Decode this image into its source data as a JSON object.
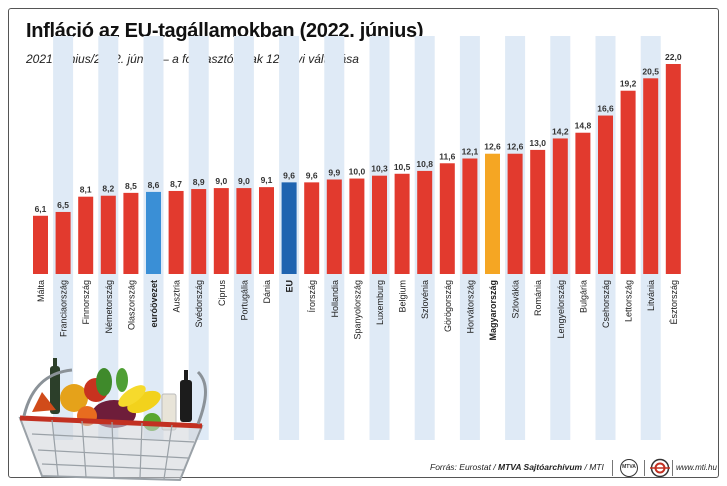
{
  "title": "Infláció az EU-tagállamokban (2022. június)",
  "subtitle": "2021. június/2022. június – a fogyasztói árak 12 havi változása",
  "footer": {
    "source_prefix": "Forrás: Eurostat / ",
    "source_bold": "MTVA Sajtóarchívum",
    "source_suffix": " / MTI",
    "logo1": "MTVA",
    "website": "www.mti.hu"
  },
  "colors": {
    "bar_default": "#e23a2e",
    "bar_eurozone": "#3a8fd6",
    "bar_eu": "#1e63b0",
    "bar_hungary": "#f5a623",
    "column_bg": "#dfeaf6"
  },
  "illustration": "shopping-basket-with-groceries",
  "chart_data": {
    "type": "bar",
    "title": "Infláció az EU-tagállamokban (2022. június)",
    "subtitle": "2021. június/2022. június – a fogyasztói árak 12 havi változása",
    "categories": [
      "Málta",
      "Franciaország",
      "Finnország",
      "Németország",
      "Olaszország",
      "euróövezet",
      "Ausztria",
      "Svédország",
      "Ciprus",
      "Portugália",
      "Dánia",
      "EU",
      "Írország",
      "Hollandia",
      "Spanyolország",
      "Luxemburg",
      "Belgium",
      "Szlovénia",
      "Görögország",
      "Horvátország",
      "Magyarország",
      "Szlovákia",
      "Románia",
      "Lengyelország",
      "Bulgária",
      "Csehország",
      "Lettország",
      "Litvánia",
      "Észtország"
    ],
    "value_labels": [
      "6,1",
      "6,5",
      "8,1",
      "8,2",
      "8,5",
      "8,6",
      "8,7",
      "8,9",
      "9,0",
      "9,0",
      "9,1",
      "9,6",
      "9,6",
      "9,9",
      "10,0",
      "10,3",
      "10,5",
      "10,8",
      "11,6",
      "12,1",
      "12,6",
      "12,6",
      "13,0",
      "14,2",
      "14,8",
      "16,6",
      "19,2",
      "20,5",
      "22,0"
    ],
    "values": [
      6.1,
      6.5,
      8.1,
      8.2,
      8.5,
      8.6,
      8.7,
      8.9,
      9.0,
      9.0,
      9.1,
      9.6,
      9.6,
      9.9,
      10.0,
      10.3,
      10.5,
      10.8,
      11.6,
      12.1,
      12.6,
      12.6,
      13.0,
      14.2,
      14.8,
      16.6,
      19.2,
      20.5,
      22.0
    ],
    "highlight": {
      "euróövezet": "eurozone",
      "EU": "eu",
      "Magyarország": "hungary"
    },
    "bold_categories": [
      "euróövezet",
      "EU",
      "Magyarország"
    ],
    "ylim": [
      0,
      22.0
    ],
    "grid": false,
    "legend": "none"
  }
}
